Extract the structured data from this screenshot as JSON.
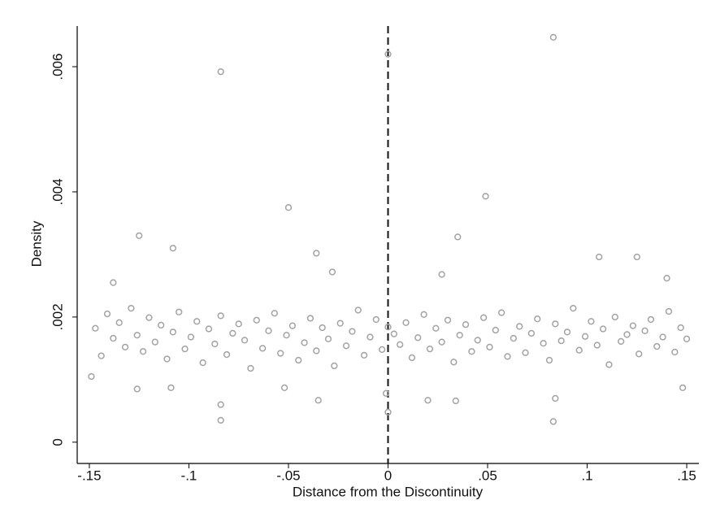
{
  "chart_data": {
    "type": "scatter",
    "x_label": "Distance from the Discontinuity",
    "y_label": "Density",
    "color": "#a3a3a3",
    "vline": 0,
    "xlim": [
      -0.1561,
      0.1561
    ],
    "ylim": [
      -0.00034,
      0.00665
    ],
    "xticks": [
      {
        "value": -0.15,
        "label": "-.15"
      },
      {
        "value": -0.1,
        "label": "-.1"
      },
      {
        "value": -0.05,
        "label": "-.05"
      },
      0,
      {
        "value": 0.05,
        "label": ".05"
      },
      {
        "value": 0.1,
        "label": ".1"
      },
      {
        "value": 0.15,
        "label": ".15"
      }
    ],
    "yticks": [
      0,
      {
        "value": 0.002,
        "label": ".002"
      },
      {
        "value": 0.004,
        "label": ".004"
      },
      {
        "value": 0.006,
        "label": ".006"
      }
    ],
    "x": [
      -0.147,
      -0.144,
      -0.141,
      -0.138,
      -0.135,
      -0.132,
      -0.129,
      -0.126,
      -0.123,
      -0.12,
      -0.117,
      -0.114,
      -0.111,
      -0.108,
      -0.105,
      -0.102,
      -0.099,
      -0.096,
      -0.093,
      -0.09,
      -0.087,
      -0.084,
      -0.081,
      -0.078,
      -0.075,
      -0.072,
      -0.069,
      -0.066,
      -0.063,
      -0.06,
      -0.057,
      -0.054,
      -0.051,
      -0.048,
      -0.045,
      -0.042,
      -0.039,
      -0.036,
      -0.033,
      -0.03,
      -0.027,
      -0.024,
      -0.021,
      -0.018,
      -0.015,
      -0.012,
      -0.009,
      -0.006,
      -0.003,
      0,
      0.003,
      0.006,
      0.009,
      0.012,
      0.015,
      0.018,
      0.021,
      0.024,
      0.027,
      0.03,
      0.033,
      0.036,
      0.039,
      0.042,
      0.045,
      0.048,
      0.051,
      0.054,
      0.057,
      0.06,
      0.063,
      0.066,
      0.069,
      0.072,
      0.075,
      0.078,
      0.081,
      0.084,
      0.087,
      0.09,
      0.093,
      0.096,
      0.099,
      0.102,
      0.105,
      0.108,
      0.111,
      0.114,
      0.117,
      0.12,
      0.123,
      0.126,
      0.129,
      0.132,
      0.135,
      0.138,
      0.141,
      0.144,
      0.147,
      0.15,
      -0.084,
      -0.05,
      0,
      0.083,
      0.049,
      -0.125,
      -0.108,
      -0.036,
      -0.028,
      0.035,
      0.027,
      0.106,
      0.125,
      0.14,
      -0.084,
      -0.084,
      0.083,
      0,
      -0.001,
      -0.138,
      -0.126,
      -0.109,
      -0.035,
      0.034,
      0.02,
      0.148,
      -0.149,
      0.084,
      -0.052
    ],
    "values": [
      0.00182,
      0.00138,
      0.00205,
      0.00166,
      0.00191,
      0.00152,
      0.00214,
      0.00171,
      0.00145,
      0.00199,
      0.0016,
      0.00187,
      0.00133,
      0.00176,
      0.00208,
      0.00149,
      0.00168,
      0.00193,
      0.00127,
      0.00181,
      0.00157,
      0.00202,
      0.0014,
      0.00174,
      0.00189,
      0.00163,
      0.00118,
      0.00195,
      0.0015,
      0.00178,
      0.00206,
      0.00142,
      0.00171,
      0.00186,
      0.00131,
      0.00159,
      0.00198,
      0.00146,
      0.00183,
      0.00165,
      0.00122,
      0.0019,
      0.00154,
      0.00177,
      0.00211,
      0.00139,
      0.00168,
      0.00196,
      0.00148,
      0.00184,
      0.00173,
      0.00156,
      0.00191,
      0.00135,
      0.00167,
      0.00204,
      0.00149,
      0.00182,
      0.0016,
      0.00195,
      0.00128,
      0.00171,
      0.00188,
      0.00145,
      0.00163,
      0.00199,
      0.00152,
      0.00179,
      0.00207,
      0.00137,
      0.00166,
      0.00185,
      0.00143,
      0.00174,
      0.00197,
      0.00158,
      0.00131,
      0.00189,
      0.00162,
      0.00176,
      0.00214,
      0.00147,
      0.00169,
      0.00193,
      0.00155,
      0.00181,
      0.00124,
      0.002,
      0.00161,
      0.00172,
      0.00186,
      0.00141,
      0.00178,
      0.00196,
      0.00153,
      0.00168,
      0.00209,
      0.00144,
      0.00183,
      0.00165,
      0.00592,
      0.00375,
      0.0062,
      0.00647,
      0.00393,
      0.0033,
      0.0031,
      0.00302,
      0.00272,
      0.00328,
      0.00268,
      0.00296,
      0.00296,
      0.00262,
      0.00035,
      0.0006,
      0.00033,
      0.00048,
      0.00078,
      0.00255,
      0.00085,
      0.00087,
      0.00067,
      0.00066,
      0.00067,
      0.00087,
      0.00105,
      0.0007,
      0.00087
    ]
  }
}
